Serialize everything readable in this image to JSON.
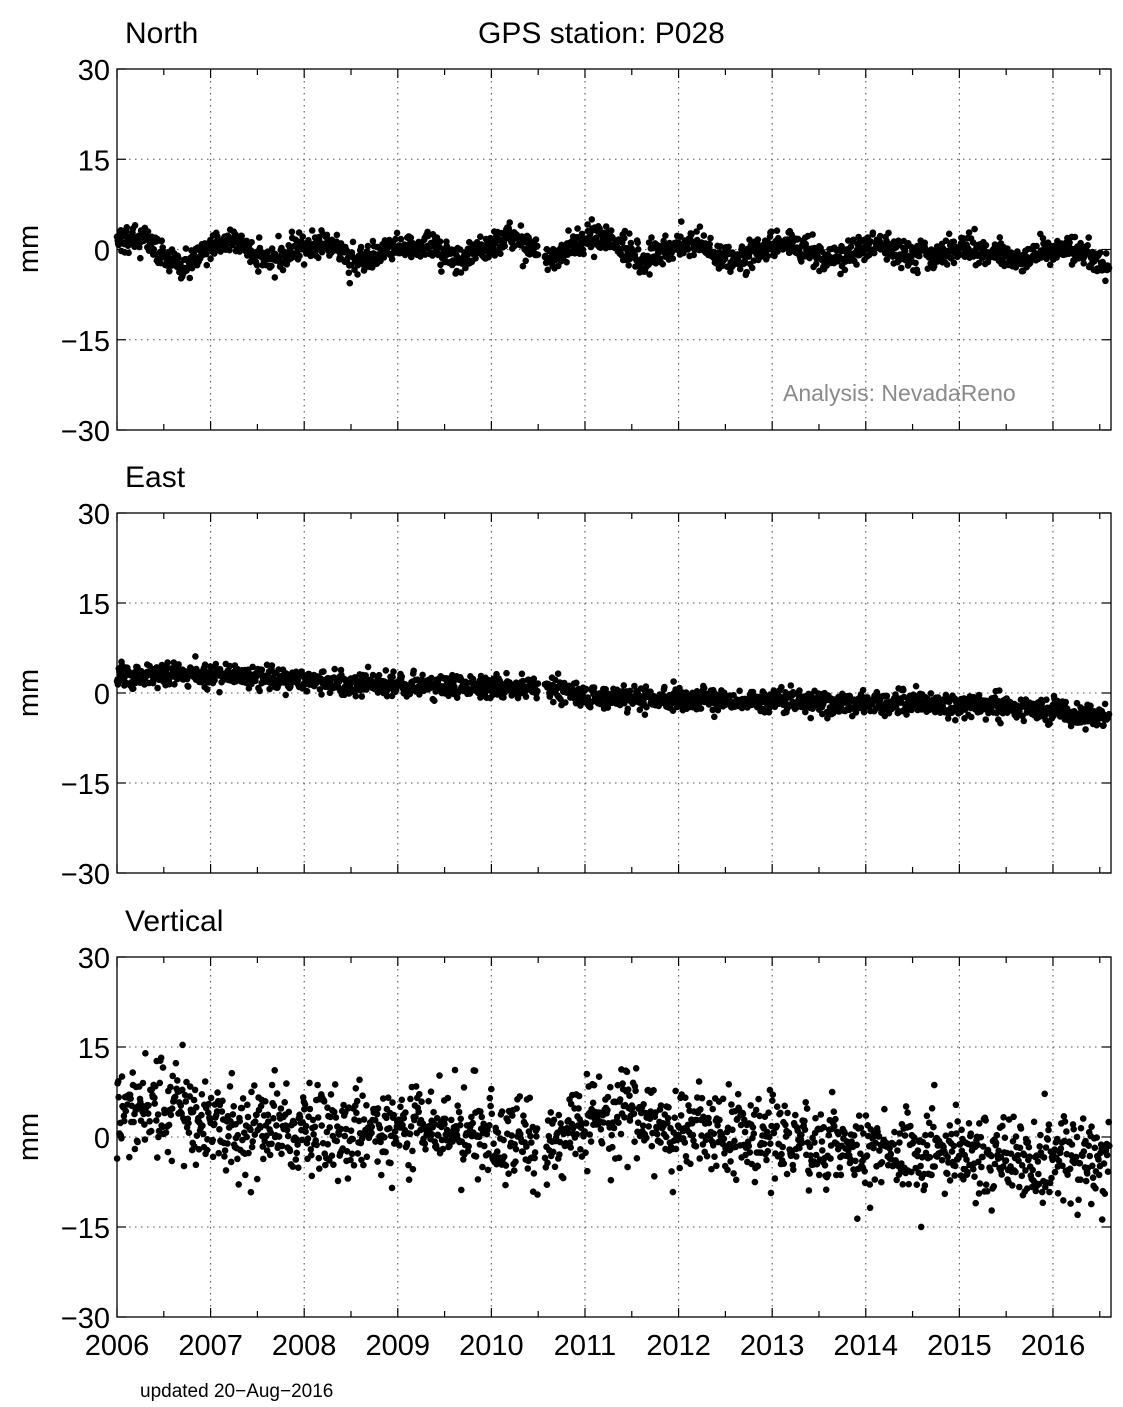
{
  "figure": {
    "title": "GPS station: P028",
    "analysis_label": "Analysis: NevadaReno",
    "updated_label": "updated 20−Aug−2016"
  },
  "chart_data": [
    {
      "type": "scatter",
      "title": "North",
      "ylabel": "mm",
      "ylim": [
        -30,
        30
      ],
      "yticks": [
        30,
        15,
        0,
        -15,
        -30
      ],
      "ytick_labels": [
        "30",
        "15",
        "0",
        "−15",
        "−30"
      ],
      "xlim": [
        2006.0,
        2016.62
      ],
      "xtick_years": [
        2006,
        2007,
        2008,
        2009,
        2010,
        2011,
        2012,
        2013,
        2014,
        2015,
        2016
      ],
      "grid": true,
      "marker_color": "#000000",
      "series": [
        {
          "x": [
            2006.0,
            2006.3,
            2006.5,
            2006.7,
            2006.9,
            2007.1,
            2007.3,
            2007.5,
            2007.7,
            2007.9,
            2008.1,
            2008.3,
            2008.5,
            2008.7,
            2008.9,
            2009.1,
            2009.3,
            2009.5,
            2009.7,
            2009.9,
            2010.1,
            2010.3,
            2010.5,
            2010.6,
            2010.8,
            2011.0,
            2011.2,
            2011.4,
            2011.6,
            2011.8,
            2012.0,
            2012.2,
            2012.4,
            2012.6,
            2012.8,
            2013.0,
            2013.2,
            2013.4,
            2013.6,
            2013.8,
            2014.0,
            2014.2,
            2014.4,
            2014.6,
            2014.8,
            2015.0,
            2015.2,
            2015.4,
            2015.6,
            2015.8,
            2016.0,
            2016.2,
            2016.4,
            2016.6
          ],
          "y": [
            1,
            2,
            -1,
            -3,
            0,
            1,
            1,
            -1,
            -2,
            0,
            1,
            1,
            -2,
            -1,
            0,
            1,
            1,
            -1,
            -2,
            0,
            1,
            1,
            0,
            -2,
            0,
            2,
            2,
            0,
            -2,
            0,
            1,
            1,
            -1,
            -2,
            -1,
            1,
            1,
            0,
            -2,
            -1,
            0,
            1,
            -1,
            -1,
            -1,
            0,
            0,
            -1,
            -2,
            -1,
            0,
            0,
            -1,
            -3
          ]
        }
      ]
    },
    {
      "type": "scatter",
      "title": "East",
      "ylabel": "mm",
      "ylim": [
        -30,
        30
      ],
      "yticks": [
        30,
        15,
        0,
        -15,
        -30
      ],
      "ytick_labels": [
        "30",
        "15",
        "0",
        "−15",
        "−30"
      ],
      "xlim": [
        2006.0,
        2016.62
      ],
      "xtick_years": [
        2006,
        2007,
        2008,
        2009,
        2010,
        2011,
        2012,
        2013,
        2014,
        2015,
        2016
      ],
      "grid": true,
      "marker_color": "#000000",
      "series": [
        {
          "x": [
            2006.0,
            2006.5,
            2007.0,
            2007.5,
            2008.0,
            2008.5,
            2009.0,
            2009.5,
            2010.0,
            2010.4,
            2010.6,
            2011.0,
            2011.5,
            2012.0,
            2012.5,
            2013.0,
            2013.5,
            2014.0,
            2014.5,
            2015.0,
            2015.5,
            2016.0,
            2016.6
          ],
          "y": [
            3,
            3,
            3,
            2.5,
            2,
            1.5,
            1.2,
            1,
            0.8,
            0.5,
            1,
            -0.5,
            -1,
            -1,
            -1.2,
            -1.5,
            -1.5,
            -1.5,
            -1.8,
            -2,
            -2.2,
            -3,
            -4
          ]
        }
      ]
    },
    {
      "type": "scatter",
      "title": "Vertical",
      "ylabel": "mm",
      "ylim": [
        -30,
        30
      ],
      "yticks": [
        30,
        15,
        0,
        -15,
        -30
      ],
      "ytick_labels": [
        "30",
        "15",
        "0",
        "−15",
        "−30"
      ],
      "xlim": [
        2006.0,
        2016.62
      ],
      "xtick_years": [
        2006,
        2007,
        2008,
        2009,
        2010,
        2011,
        2012,
        2013,
        2014,
        2015,
        2016
      ],
      "xtick_labels": [
        "2006",
        "2007",
        "2008",
        "2009",
        "2010",
        "2011",
        "2012",
        "2013",
        "2014",
        "2015",
        "2016"
      ],
      "grid": true,
      "marker_color": "#000000",
      "series": [
        {
          "x": [
            2006.0,
            2006.2,
            2006.4,
            2006.6,
            2006.8,
            2007.0,
            2007.3,
            2007.6,
            2008.0,
            2008.4,
            2008.8,
            2009.2,
            2009.6,
            2010.0,
            2010.4,
            2010.6,
            2011.0,
            2011.3,
            2011.6,
            2012.0,
            2012.4,
            2012.8,
            2013.2,
            2013.6,
            2014.0,
            2014.4,
            2014.8,
            2015.2,
            2015.6,
            2016.0,
            2016.3,
            2016.6
          ],
          "y": [
            4,
            5,
            6,
            5,
            3,
            2,
            2,
            2,
            1,
            1,
            1,
            2,
            1,
            0,
            0,
            -1,
            2,
            4,
            3,
            1,
            1,
            0,
            -1,
            -1,
            -3,
            -2,
            -2,
            -3,
            -4,
            -4,
            -3,
            -4
          ]
        }
      ]
    }
  ]
}
